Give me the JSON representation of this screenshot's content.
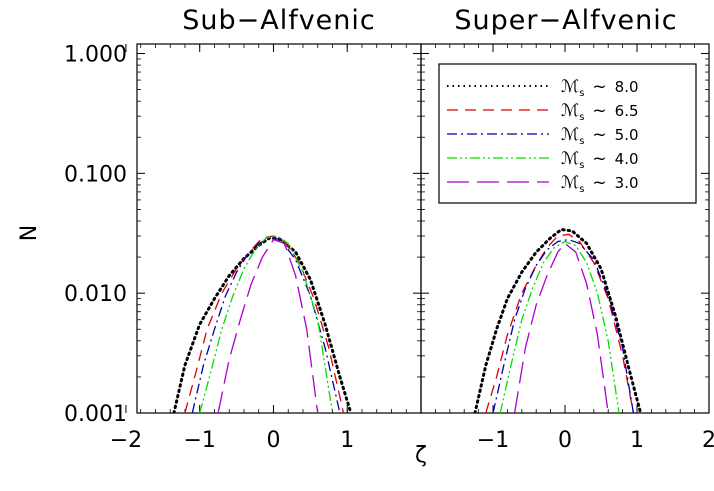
{
  "chart_data": [
    {
      "type": "line",
      "title": "Sub−Alfvenic",
      "ylabel": "N",
      "xlabel": "ζ",
      "y_scale": "log",
      "xlim": [
        -1.85,
        2.0
      ],
      "ylim": [
        0.001,
        1.2
      ],
      "x_ticks": [
        -2,
        -1,
        0,
        1
      ],
      "x_tick_labels": [
        "−2",
        "−1",
        "0",
        "1"
      ],
      "y_ticks": [
        0.001,
        0.01,
        0.1,
        1.0
      ],
      "y_tick_labels": [
        "0.001",
        "0.010",
        "0.100",
        "1.000"
      ],
      "series": [
        {
          "color": "#000000",
          "dash": "dotted",
          "x": [
            -1.35,
            -1.2,
            -1.0,
            -0.8,
            -0.6,
            -0.4,
            -0.2,
            -0.05,
            0.1,
            0.3,
            0.5,
            0.7,
            0.9,
            1.05
          ],
          "y": [
            0.001,
            0.0025,
            0.0055,
            0.009,
            0.014,
            0.0195,
            0.025,
            0.029,
            0.028,
            0.022,
            0.013,
            0.0055,
            0.002,
            0.001
          ]
        },
        {
          "color": "#dd0000",
          "dash": "dashed",
          "x": [
            -1.2,
            -1.05,
            -0.9,
            -0.7,
            -0.5,
            -0.3,
            -0.15,
            0.0,
            0.15,
            0.35,
            0.55,
            0.75,
            0.95
          ],
          "y": [
            0.001,
            0.0022,
            0.005,
            0.01,
            0.016,
            0.023,
            0.029,
            0.03,
            0.027,
            0.018,
            0.009,
            0.0035,
            0.001
          ]
        },
        {
          "color": "#0000aa",
          "dash": "dashdot",
          "x": [
            -1.1,
            -0.95,
            -0.8,
            -0.65,
            -0.5,
            -0.35,
            -0.2,
            -0.05,
            0.1,
            0.3,
            0.5,
            0.7,
            0.9
          ],
          "y": [
            0.001,
            0.0025,
            0.005,
            0.0095,
            0.015,
            0.021,
            0.026,
            0.029,
            0.028,
            0.019,
            0.0095,
            0.0035,
            0.001
          ]
        },
        {
          "color": "#00dd00",
          "dash": "dashdotdot",
          "x": [
            -1.0,
            -0.85,
            -0.7,
            -0.55,
            -0.4,
            -0.25,
            -0.1,
            0.05,
            0.2,
            0.4,
            0.6,
            0.8
          ],
          "y": [
            0.001,
            0.0022,
            0.005,
            0.0095,
            0.016,
            0.023,
            0.029,
            0.03,
            0.026,
            0.015,
            0.006,
            0.001
          ]
        },
        {
          "color": "#aa00cc",
          "dash": "longdash",
          "x": [
            -0.75,
            -0.6,
            -0.45,
            -0.3,
            -0.15,
            0.0,
            0.15,
            0.3,
            0.45,
            0.6
          ],
          "y": [
            0.001,
            0.0028,
            0.006,
            0.012,
            0.02,
            0.028,
            0.026,
            0.014,
            0.005,
            0.001
          ]
        }
      ]
    },
    {
      "type": "line",
      "title": "Super−Alfvenic",
      "y_scale": "log",
      "xlim": [
        -2.0,
        2.0
      ],
      "ylim": [
        0.001,
        1.2
      ],
      "x_ticks": [
        -1,
        0,
        1,
        2
      ],
      "x_tick_labels": [
        "−1",
        "0",
        "1",
        "2"
      ],
      "legend": {
        "position": "top-right",
        "label_symbol": "ℳ",
        "label_subscript": "s",
        "approx": "~",
        "entries": [
          "8.0",
          "6.5",
          "5.0",
          "4.0",
          "3.0"
        ]
      },
      "series": [
        {
          "color": "#000000",
          "dash": "dotted",
          "x": [
            -1.25,
            -1.1,
            -0.95,
            -0.8,
            -0.6,
            -0.4,
            -0.2,
            -0.05,
            0.1,
            0.3,
            0.5,
            0.7,
            0.9,
            1.05
          ],
          "y": [
            0.001,
            0.0025,
            0.005,
            0.009,
            0.015,
            0.022,
            0.029,
            0.034,
            0.033,
            0.026,
            0.016,
            0.0065,
            0.0022,
            0.001
          ]
        },
        {
          "color": "#dd0000",
          "dash": "dashed",
          "x": [
            -1.1,
            -0.95,
            -0.8,
            -0.6,
            -0.4,
            -0.25,
            -0.1,
            0.05,
            0.2,
            0.4,
            0.6,
            0.8,
            0.95
          ],
          "y": [
            0.001,
            0.002,
            0.0045,
            0.01,
            0.017,
            0.024,
            0.03,
            0.031,
            0.027,
            0.018,
            0.009,
            0.003,
            0.001
          ]
        },
        {
          "color": "#0000aa",
          "dash": "dashdot",
          "x": [
            -1.0,
            -0.85,
            -0.7,
            -0.55,
            -0.4,
            -0.25,
            -0.1,
            0.05,
            0.2,
            0.4,
            0.6,
            0.8,
            0.95
          ],
          "y": [
            0.001,
            0.0025,
            0.006,
            0.011,
            0.017,
            0.023,
            0.027,
            0.028,
            0.026,
            0.019,
            0.0095,
            0.0035,
            0.001
          ]
        },
        {
          "color": "#00dd00",
          "dash": "dashdotdot",
          "x": [
            -0.9,
            -0.75,
            -0.6,
            -0.45,
            -0.3,
            -0.15,
            0.0,
            0.15,
            0.3,
            0.45,
            0.6,
            0.75
          ],
          "y": [
            0.001,
            0.0025,
            0.006,
            0.011,
            0.018,
            0.024,
            0.027,
            0.025,
            0.018,
            0.01,
            0.004,
            0.001
          ]
        },
        {
          "color": "#aa00cc",
          "dash": "longdash",
          "x": [
            -0.7,
            -0.55,
            -0.4,
            -0.25,
            -0.1,
            0.0,
            0.15,
            0.3,
            0.45,
            0.6
          ],
          "y": [
            0.001,
            0.0035,
            0.008,
            0.014,
            0.022,
            0.026,
            0.022,
            0.012,
            0.0045,
            0.001
          ]
        }
      ]
    }
  ]
}
